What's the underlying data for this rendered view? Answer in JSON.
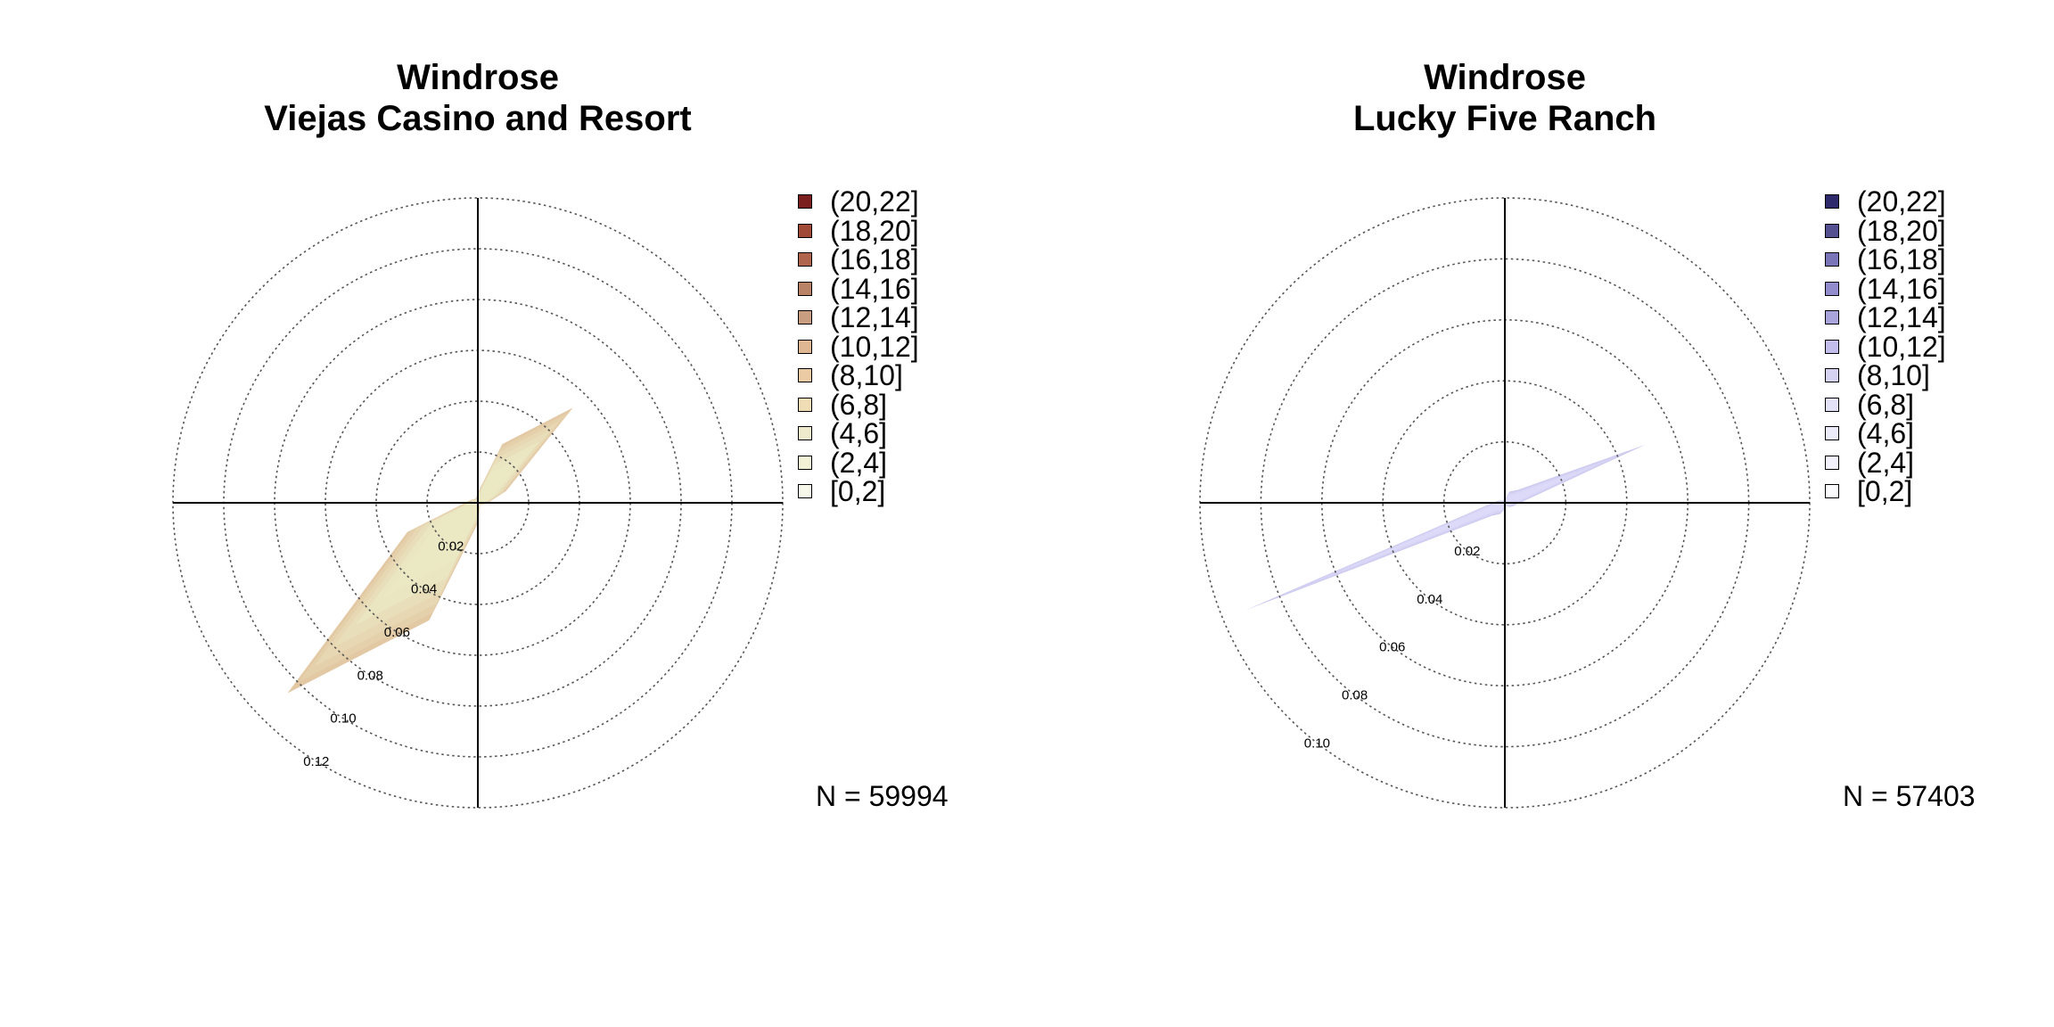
{
  "chart_data": [
    {
      "type": "polar-area",
      "title": "Windrose",
      "subtitle": "Viejas Casino and Resort",
      "radial_ticks": [
        "0.02",
        "0.04",
        "0.06",
        "0.08",
        "0.10",
        "0.12"
      ],
      "rmax": 0.12,
      "legend_labels": [
        "(20,22]",
        "(18,20]",
        "(16,18]",
        "(14,16]",
        "(12,14]",
        "(10,12]",
        "(8,10]",
        "(6,8]",
        "(4,6]",
        "(2,4]",
        "[0,2]"
      ],
      "legend_colors": [
        "#7b1f1f",
        "#a14a38",
        "#b0664e",
        "#b88367",
        "#c99e80",
        "#dfb793",
        "#eacba4",
        "#f1ddb5",
        "#efeacb",
        "#f2f2d6",
        "#f8f8ea"
      ],
      "n_label": "N = 59994",
      "fill_color": "#ebe8c4",
      "directions_deg": [
        0,
        22.5,
        45,
        67.5,
        90,
        112.5,
        135,
        157.5,
        180,
        202.5,
        225,
        247.5,
        270,
        292.5,
        315,
        337.5
      ],
      "frequencies": [
        0.004,
        0.025,
        0.053,
        0.012,
        0.004,
        0.002,
        0.001,
        0.002,
        0.008,
        0.05,
        0.106,
        0.03,
        0.005,
        0.003,
        0.002,
        0.002
      ],
      "legend_position": "right"
    },
    {
      "type": "polar-area",
      "title": "Windrose",
      "subtitle": "Lucky Five Ranch",
      "radial_ticks": [
        "0.02",
        "0.04",
        "0.06",
        "0.08",
        "0.10"
      ],
      "rmax": 0.1,
      "legend_labels": [
        "(20,22]",
        "(18,20]",
        "(16,18]",
        "(14,16]",
        "(12,14]",
        "(10,12]",
        "(8,10]",
        "(6,8]",
        "(4,6]",
        "(2,4]",
        "[0,2]"
      ],
      "legend_colors": [
        "#2e2a6b",
        "#55508f",
        "#7a74b8",
        "#938ccc",
        "#aaa4dc",
        "#c2bdea",
        "#d6d2f2",
        "#e3e1f7",
        "#ecebfa",
        "#f3f2fc",
        "#fbfbfe"
      ],
      "n_label": "N = 57403",
      "fill_color": "#dcdaf8",
      "directions_deg": [
        0,
        22.5,
        45,
        67.5,
        90,
        112.5,
        135,
        157.5,
        180,
        202.5,
        225,
        247.5,
        270,
        292.5,
        315,
        337.5
      ],
      "frequencies": [
        0.001,
        0.004,
        0.006,
        0.05,
        0.005,
        0.003,
        0.002,
        0.001,
        0.002,
        0.004,
        0.006,
        0.092,
        0.004,
        0.002,
        0.001,
        0.001
      ],
      "legend_position": "right"
    }
  ]
}
